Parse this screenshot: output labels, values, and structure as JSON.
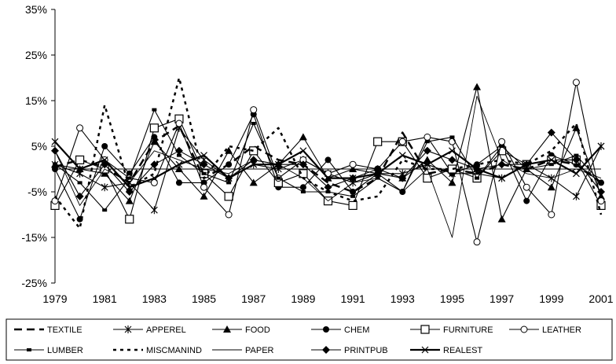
{
  "chart_data": {
    "type": "line",
    "title": "",
    "xlabel": "",
    "ylabel": "",
    "x": [
      1979,
      1980,
      1981,
      1982,
      1983,
      1984,
      1985,
      1986,
      1987,
      1988,
      1989,
      1990,
      1991,
      1992,
      1993,
      1994,
      1995,
      1996,
      1997,
      1998,
      1999,
      2000,
      2001
    ],
    "x_ticks": [
      "1979",
      "1981",
      "1983",
      "1985",
      "1987",
      "1989",
      "1991",
      "1993",
      "1995",
      "1997",
      "1999",
      "2001"
    ],
    "y_ticks": [
      "35%",
      "25%",
      "15%",
      "5%",
      "-5%",
      "-15%",
      "-25%"
    ],
    "ylim": [
      -25,
      35
    ],
    "grid": false,
    "legend_position": "bottom",
    "series": [
      {
        "name": "TEXTILE",
        "style": "dash",
        "marker": "none",
        "values": [
          0.5,
          2,
          0.5,
          -3,
          6,
          9.5,
          -2,
          1,
          5,
          2,
          1,
          -3,
          -5,
          -2,
          8,
          -1,
          0,
          -1,
          1,
          0,
          2,
          1,
          -3
        ]
      },
      {
        "name": "APPEREL",
        "style": "solid",
        "marker": "star",
        "values": [
          1,
          -1,
          -4,
          -3,
          -9,
          9,
          2,
          -2,
          1,
          0,
          2,
          -1,
          -3,
          -1,
          -1,
          1,
          -1,
          -1,
          -2,
          1,
          -2,
          -6,
          5
        ]
      },
      {
        "name": "FOOD",
        "style": "solid",
        "marker": "triangle",
        "values": [
          1,
          0,
          -1,
          -7,
          6,
          0,
          -6,
          4,
          -3,
          1,
          7,
          -2,
          0,
          -1,
          -2,
          2,
          -3,
          18,
          -11,
          0,
          -4,
          9,
          -6
        ]
      },
      {
        "name": "CHEM",
        "style": "solid",
        "marker": "circle",
        "values": [
          0,
          -11,
          5,
          -1,
          7,
          -3,
          -3,
          1,
          12,
          -4,
          -4,
          2,
          -5,
          -1,
          -5,
          7,
          -1,
          1,
          5,
          -7,
          3,
          1,
          -3
        ]
      },
      {
        "name": "FURNITURE",
        "style": "solid",
        "marker": "square",
        "values": [
          -8,
          2,
          0,
          -11,
          9,
          11,
          -1,
          -6,
          4,
          -3,
          -1,
          -7,
          -8,
          6,
          6,
          -2,
          0,
          -2,
          4,
          1,
          2,
          2,
          -8
        ]
      },
      {
        "name": "LEATHER",
        "style": "solid",
        "marker": "circle-open",
        "values": [
          -7,
          9,
          2,
          -2,
          -3,
          10,
          -4,
          -10,
          13,
          -2,
          2,
          -1,
          1,
          0,
          6,
          7,
          6,
          -16,
          6,
          -4,
          -10,
          19,
          -7
        ]
      },
      {
        "name": "LUMBER",
        "style": "solid",
        "marker": "dash-marker",
        "values": [
          1,
          -3,
          -9,
          -2,
          13,
          3,
          -1,
          -3,
          10,
          -2,
          -5,
          -5,
          -6,
          -2,
          -5,
          6,
          7,
          -2,
          5,
          0,
          1,
          3,
          -3
        ]
      },
      {
        "name": "MISCMANIND",
        "style": "dot",
        "marker": "none",
        "values": [
          -6,
          -13,
          14,
          -4,
          -1,
          20,
          -2,
          5,
          4,
          9,
          -2,
          -5,
          -7,
          -6,
          2,
          0,
          0,
          1,
          2,
          1,
          4,
          10,
          -10
        ]
      },
      {
        "name": "PAPER",
        "style": "thin",
        "marker": "none",
        "values": [
          4,
          -8,
          0,
          -3,
          4,
          2,
          0,
          -1,
          2,
          1,
          -2,
          -7,
          -3,
          -2,
          -5,
          0,
          -15,
          16,
          2,
          -1,
          -2,
          0,
          -2
        ]
      },
      {
        "name": "PRINTPUB",
        "style": "solid",
        "marker": "diamond",
        "values": [
          4,
          -6,
          1,
          -5,
          1,
          4,
          1,
          -2,
          2,
          1,
          1,
          -4,
          -2,
          0,
          -2,
          4,
          2,
          0,
          1,
          1,
          8,
          2,
          -5
        ]
      },
      {
        "name": "REALEST",
        "style": "solid-thick",
        "marker": "x",
        "values": [
          6,
          0,
          2,
          -4,
          -2,
          1,
          3,
          -2,
          1,
          1,
          4,
          -2,
          -2,
          -1,
          3,
          1,
          4,
          0,
          -2,
          1,
          2,
          -1,
          5
        ]
      }
    ]
  }
}
